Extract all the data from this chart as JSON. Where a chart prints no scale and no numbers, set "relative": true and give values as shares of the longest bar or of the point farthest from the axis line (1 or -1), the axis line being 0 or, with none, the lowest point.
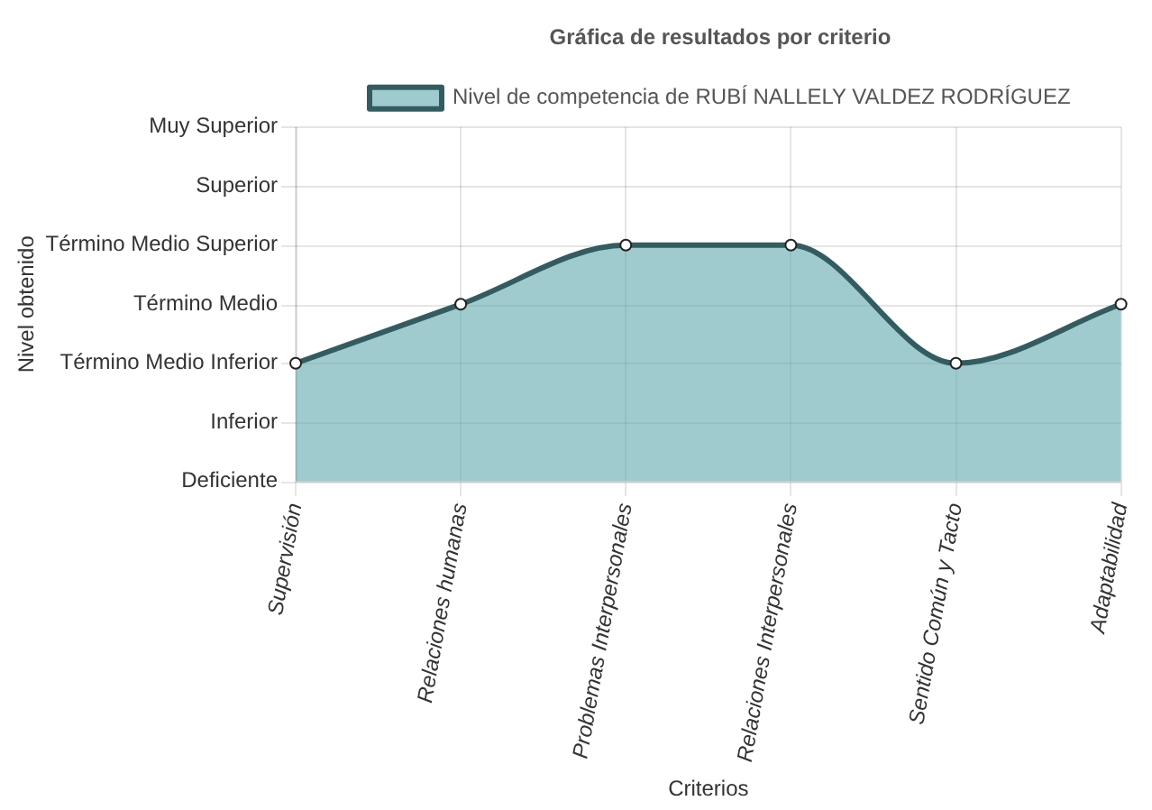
{
  "chart_data": {
    "type": "area",
    "title": "Gráfica de resultados por criterio",
    "xlabel": "Criterios",
    "categories": [
      "Supervisión",
      "Relaciones humanas",
      "Problemas Interpersonales",
      "Relaciones Interpersonales",
      "Sentido Común y Tacto",
      "Adaptabilidad"
    ],
    "series": [
      {
        "name": "Nivel de competencia de RUBÍ NALLELY VALDEZ RODRÍGUEZ",
        "color": "#5fa8ae",
        "values": [
          0.5,
          0.75,
          1,
          1,
          0.5,
          0.75
        ]
      }
    ],
    "relative": true,
    "annotations": [
      "Nivel obtenido",
      "Muy Superior",
      "Superior",
      "Término Medio Superior",
      "Término Medio",
      "Término Medio Inferior",
      "Inferior",
      "Deficiente"
    ],
    "grid": true,
    "legend": "top",
    "marker": "circle",
    "line_style": "solid"
  }
}
